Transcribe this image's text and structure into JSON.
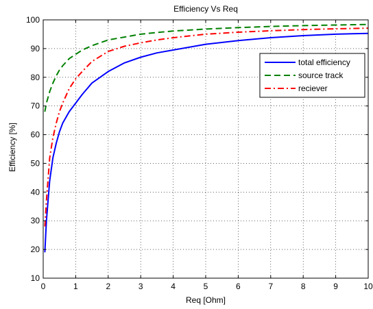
{
  "chart_data": {
    "type": "line",
    "title": "Efficiency Vs Req",
    "xlabel": "Req [Ohm]",
    "ylabel": "Efficiency [%]",
    "xlim": [
      0,
      10
    ],
    "ylim": [
      10,
      100
    ],
    "xticks": [
      "0",
      "1",
      "2",
      "3",
      "4",
      "5",
      "6",
      "7",
      "8",
      "9",
      "10"
    ],
    "yticks": [
      "10",
      "20",
      "30",
      "40",
      "50",
      "60",
      "70",
      "80",
      "90",
      "100"
    ],
    "grid": true,
    "legend_position": "top-right",
    "series": [
      {
        "name": "total efficiency",
        "color": "#0000ff",
        "style": "solid",
        "x": [
          0.05,
          0.1,
          0.2,
          0.3,
          0.4,
          0.5,
          0.6,
          0.8,
          1.0,
          1.2,
          1.5,
          2.0,
          2.5,
          3.0,
          3.5,
          4.0,
          5.0,
          6.0,
          7.0,
          8.0,
          9.0,
          10.0
        ],
        "y": [
          19,
          30,
          44,
          52,
          57,
          61,
          64,
          68,
          71,
          74,
          78,
          82,
          85,
          87,
          88.5,
          89.5,
          91.5,
          92.8,
          93.8,
          94.5,
          95,
          95.3
        ]
      },
      {
        "name": "source track",
        "color": "#008000",
        "style": "dashed",
        "x": [
          0.05,
          0.1,
          0.2,
          0.3,
          0.4,
          0.5,
          0.6,
          0.8,
          1.0,
          1.2,
          1.5,
          2.0,
          2.5,
          3.0,
          3.5,
          4.0,
          5.0,
          6.0,
          7.0,
          8.0,
          9.0,
          10.0
        ],
        "y": [
          68,
          71,
          75,
          78,
          80.5,
          82.5,
          84,
          86.5,
          88,
          89.5,
          91,
          93,
          94,
          95,
          95.6,
          96.1,
          96.8,
          97.3,
          97.7,
          98,
          98.2,
          98.4
        ]
      },
      {
        "name": "reciever",
        "color": "#ff0000",
        "style": "dashdot",
        "x": [
          0.05,
          0.1,
          0.2,
          0.3,
          0.4,
          0.5,
          0.6,
          0.8,
          1.0,
          1.2,
          1.5,
          2.0,
          2.5,
          3.0,
          3.5,
          4.0,
          5.0,
          6.0,
          7.0,
          8.0,
          9.0,
          10.0
        ],
        "y": [
          28,
          37,
          52,
          59,
          64,
          68,
          71,
          76,
          79.5,
          82,
          85.5,
          89,
          90.8,
          92,
          93,
          93.8,
          95,
          95.7,
          96.2,
          96.6,
          96.9,
          97.1
        ]
      }
    ]
  }
}
